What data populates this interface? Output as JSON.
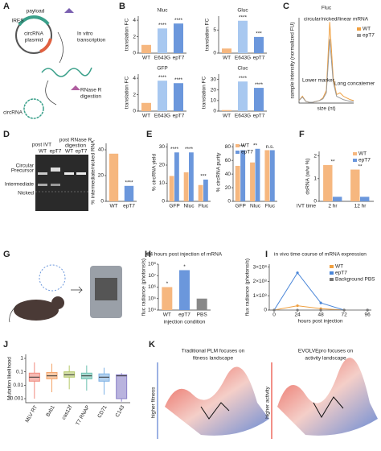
{
  "figure": {
    "panel_letters": [
      "A",
      "B",
      "C",
      "D",
      "E",
      "F",
      "G",
      "H",
      "I",
      "J",
      "K"
    ],
    "A": [
      "payload",
      "IRES",
      "circRNA",
      "plasmid",
      "In vitro",
      "transcription",
      "RNase R",
      "digestion",
      "circRNA"
    ],
    "D": [
      "post IVT",
      "post RNase R",
      "digestion",
      "WT",
      "epT7",
      "WT",
      "epT7",
      "Circular",
      "Precursor",
      "Intermediate",
      "Nicked"
    ],
    "K": [
      "Traditional PLM focuses on",
      "fitness landscape",
      "EVOLVEpro focuses on",
      "activity landscape",
      "higher fitness",
      "higher activity"
    ]
  },
  "chart_data": [
    {
      "type": "bar",
      "title": "Nluc",
      "ylabel": "translation FC",
      "categories": [
        "WT",
        "E643G",
        "epT7"
      ],
      "values": [
        1,
        3,
        3.6
      ],
      "colors": [
        "#f6b77f",
        "#a8c8f0",
        "#6b97dc"
      ],
      "significance": [
        null,
        "****",
        "****"
      ],
      "ylim": [
        0,
        4.5
      ],
      "yticks": [
        0,
        2,
        4
      ]
    },
    {
      "type": "bar",
      "title": "Gluc",
      "ylabel": "translation FC",
      "categories": [
        "WT",
        "E643G",
        "epT7"
      ],
      "values": [
        1,
        7,
        3.5
      ],
      "colors": [
        "#f6b77f",
        "#a8c8f0",
        "#6b97dc"
      ],
      "significance": [
        null,
        "****",
        "***"
      ],
      "ylim": [
        0,
        8
      ],
      "yticks": [
        0,
        5
      ]
    },
    {
      "type": "bar",
      "title": "GFP",
      "ylabel": "translation FC",
      "categories": [
        "WT",
        "E643G",
        "epT7"
      ],
      "values": [
        1,
        3.7,
        3.4
      ],
      "colors": [
        "#f6b77f",
        "#a8c8f0",
        "#6b97dc"
      ],
      "significance": [
        null,
        "****",
        "****"
      ],
      "ylim": [
        0,
        4.5
      ],
      "yticks": [
        0,
        2,
        4
      ]
    },
    {
      "type": "bar",
      "title": "Cluc",
      "ylabel": "translation FC",
      "categories": [
        "WT",
        "E643G",
        "epT7"
      ],
      "values": [
        1,
        28,
        22
      ],
      "colors": [
        "#f6b77f",
        "#a8c8f0",
        "#6b97dc"
      ],
      "significance": [
        null,
        "****",
        "****"
      ],
      "ylim": [
        0,
        35
      ],
      "yticks": [
        0,
        10,
        20,
        30
      ]
    },
    {
      "type": "line",
      "title": "Fluc",
      "xlabel": "size (nt)",
      "ylabel": "sample intensity (normalized FU)",
      "x": [
        0,
        1,
        2,
        3,
        4,
        5,
        6,
        7,
        8,
        9,
        10,
        11,
        12,
        13,
        14,
        15,
        16
      ],
      "xlim": [
        0,
        16
      ],
      "ylim": [
        0,
        10
      ],
      "legend": "right",
      "series": [
        {
          "name": "WT",
          "color": "#f0a040",
          "values": [
            0.3,
            0.8,
            0.2,
            0.1,
            0.1,
            0.2,
            0.3,
            0.6,
            1.5,
            9.5,
            3,
            1,
            1.2,
            0.8,
            0.6,
            0.4,
            0.3
          ]
        },
        {
          "name": "epT7",
          "color": "#999999",
          "values": [
            0.3,
            0.7,
            0.2,
            0.1,
            0.1,
            0.2,
            0.3,
            0.5,
            1.2,
            7.5,
            2.5,
            0.8,
            0.6,
            0.4,
            0.3,
            0.2,
            0.2
          ]
        }
      ],
      "annotations": [
        "circular/nicked/linear mRNA",
        "Lower marker",
        "Long concatemer"
      ]
    },
    {
      "type": "bar",
      "ylabel": "% intermediate/nicked RNA",
      "categories": [
        "WT",
        "epT7"
      ],
      "values": [
        37,
        12
      ],
      "colors": [
        "#f6b77f",
        "#6b97dc"
      ],
      "significance": [
        null,
        "****"
      ],
      "ylim": [
        0,
        45
      ],
      "yticks": [
        0,
        20,
        40
      ]
    },
    {
      "type": "bar",
      "ylabel": "% circRNA yield",
      "categories": [
        "GFP",
        "Nluc",
        "Fluc"
      ],
      "series": [
        {
          "color": "#f6b77f",
          "values": [
            14,
            16,
            9
          ]
        },
        {
          "color": "#6b97dc",
          "values": [
            27,
            27,
            12
          ]
        }
      ],
      "significance": [
        "****",
        "****",
        "***"
      ],
      "ylim": [
        0,
        32
      ],
      "yticks": [
        0,
        10,
        20,
        30
      ]
    },
    {
      "type": "bar",
      "ylabel": "% circRNA purity",
      "categories": [
        "GFP",
        "Nluc",
        "Fluc"
      ],
      "series": [
        {
          "name": "WT",
          "color": "#f6b77f",
          "values": [
            52,
            57,
            75
          ]
        },
        {
          "name": "epT7",
          "color": "#6b97dc",
          "values": [
            75,
            77,
            75
          ]
        }
      ],
      "significance": [
        "****",
        "**",
        "n.s."
      ],
      "ylim": [
        0,
        85
      ],
      "yticks": [
        0,
        20,
        40,
        60,
        80
      ],
      "legend": "top-left"
    },
    {
      "type": "bar",
      "ylabel": "dsRNA (w/w %)",
      "xlabel": "IVT time",
      "categories": [
        "2 hr",
        "12 hr"
      ],
      "series": [
        {
          "name": "WT",
          "color": "#f6b77f",
          "values": [
            1.6,
            1.4
          ]
        },
        {
          "name": "epT7",
          "color": "#6b97dc",
          "values": [
            0.2,
            0.2
          ]
        }
      ],
      "significance": [
        "**",
        "**"
      ],
      "ylim": [
        0,
        2.2
      ],
      "yticks": [
        0,
        1,
        2
      ],
      "legend": "top-right"
    },
    {
      "type": "bar",
      "title": "24 hours post injection of mRNA",
      "ylabel": "fluc radiance (photons/s)",
      "xlabel": "injection condition",
      "categories": [
        "WT",
        "epT7",
        "PBS"
      ],
      "values": [
        1000000,
        30000000,
        100000
      ],
      "colors": [
        "#f6b77f",
        "#6b97dc",
        "#888888"
      ],
      "significance": [
        "*",
        "*",
        null
      ],
      "log": true,
      "ylim": [
        10000,
        100000000
      ],
      "yticks": [
        {
          "value": 10000,
          "label": "10⁴"
        },
        {
          "value": 100000,
          "label": "10⁵"
        },
        {
          "value": 1000000,
          "label": "10⁶"
        },
        {
          "value": 10000000,
          "label": "10⁷"
        },
        {
          "value": 100000000,
          "label": "10⁸"
        }
      ]
    },
    {
      "type": "line",
      "title": "in vivo time course of mRNA expression",
      "xlabel": "hours post injection",
      "ylabel": "flux radiance (photons/s)",
      "x": [
        0,
        24,
        48,
        72,
        96
      ],
      "xlim": [
        -5,
        100
      ],
      "xticks": [
        0,
        24,
        48,
        72,
        96
      ],
      "ylim": [
        0,
        320000000
      ],
      "yticks": [
        0,
        {
          "value": 100000000,
          "label": "1×10⁸"
        },
        {
          "value": 200000000,
          "label": "2×10⁸"
        },
        {
          "value": 300000000,
          "label": "3×10⁸"
        }
      ],
      "legend": "top-right",
      "markers": true,
      "series": [
        {
          "name": "WT",
          "color": "#f0a040",
          "values": [
            0,
            30000000,
            10000000,
            0,
            0
          ]
        },
        {
          "name": "epT7",
          "color": "#4a86d8",
          "values": [
            0,
            260000000,
            50000000,
            0,
            0
          ]
        },
        {
          "name": "Background PBS",
          "color": "#777777",
          "values": [
            0,
            0,
            0,
            0,
            0
          ]
        }
      ]
    },
    {
      "type": "box",
      "ylabel": "Mutation likelihood",
      "categories": [
        "MLV RT",
        "Bxb1",
        "cas12f",
        "T7 RNAP",
        "CD71",
        "C143"
      ],
      "colors": [
        "#f08a7e",
        "#f4a56a",
        "#b5c96a",
        "#6cc0b0",
        "#7fb2e5",
        "#8a80c8"
      ],
      "q1": [
        0.02,
        0.03,
        0.04,
        0.03,
        0.02,
        0.001
      ],
      "median": [
        0.04,
        0.05,
        0.06,
        0.05,
        0.04,
        0.05
      ],
      "q3": [
        0.08,
        0.09,
        0.1,
        0.08,
        0.07,
        0.06
      ],
      "whislo": [
        0.001,
        0.003,
        0.005,
        0.004,
        0.002,
        0.0006
      ],
      "whishi": [
        0.5,
        0.4,
        0.3,
        0.3,
        0.2,
        0.08
      ],
      "log": true,
      "ylim": [
        0.0005,
        2
      ],
      "yticks": [
        0.001,
        0.01,
        0.1,
        1
      ]
    }
  ]
}
